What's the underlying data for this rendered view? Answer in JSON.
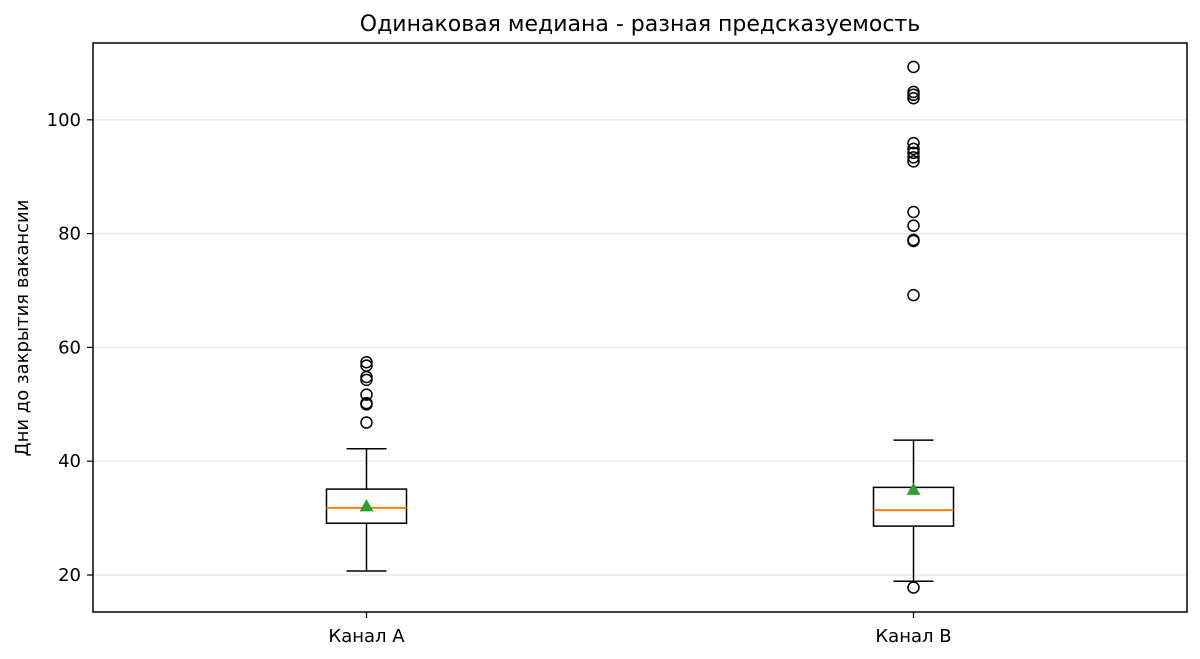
{
  "chart_data": {
    "type": "box",
    "title": "Одинаковая медиана - разная предсказуемость",
    "xlabel": "",
    "ylabel": "Дни до закрытия вакансии",
    "ylim": [
      13.5,
      113.5
    ],
    "yticks": [
      20,
      40,
      60,
      80,
      100
    ],
    "grid": "y",
    "categories": [
      "Канал А",
      "Канал В"
    ],
    "series": [
      {
        "whisker_low": 20.7,
        "q1": 29.1,
        "median": 31.8,
        "q3": 35.1,
        "whisker_high": 42.2,
        "mean": 32.1,
        "outliers": [
          46.8,
          50.0,
          50.2,
          51.7,
          54.3,
          54.8,
          56.8,
          57.4
        ]
      },
      {
        "whisker_low": 18.9,
        "q1": 28.6,
        "median": 31.4,
        "q3": 35.4,
        "whisker_high": 43.7,
        "mean": 35.0,
        "outliers": [
          17.8,
          69.2,
          78.7,
          78.9,
          81.4,
          83.8,
          92.7,
          93.4,
          94.2,
          94.9,
          95.9,
          103.8,
          104.4,
          104.9,
          109.3
        ]
      }
    ],
    "colors": {
      "median": "#ff7f0e",
      "mean": "#2ca02c",
      "box": "#000000",
      "grid": "#e6e6e6"
    }
  }
}
